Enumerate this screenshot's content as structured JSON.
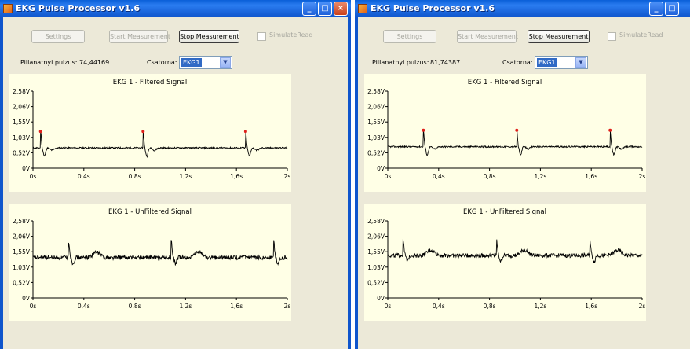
{
  "windows": [
    {
      "title": "EKG Pulse Processor v1.6",
      "buttons": {
        "settings": "Settings",
        "start": "Start Measurement",
        "stop": "Stop Measurement"
      },
      "simulate_label": "SimulateRead",
      "pulse_label": "Pillanatnyi pulzus:",
      "pulse_value": "74,44169",
      "channel_label": "Csatorna:",
      "channel_value": "EKG1",
      "charts": [
        {
          "type": "line",
          "title": "EKG 1 - Filtered Signal",
          "filtered": true,
          "baseline": 0.68,
          "rate_bpm": 74.44,
          "first_beat": 0.06,
          "xlabels": [
            "0s",
            "0,4s",
            "0,8s",
            "1,2s",
            "1,6s",
            "2s"
          ],
          "ylabels": [
            "0V",
            "0,52V",
            "1,03V",
            "1,55V",
            "2,06V",
            "2,58V"
          ],
          "xlim": [
            0,
            2
          ],
          "ylim": [
            0,
            2.58
          ],
          "peak_marker_color": "#e0201b"
        },
        {
          "type": "line",
          "title": "EKG 1 - UnFiltered Signal",
          "filtered": false,
          "baseline": 1.35,
          "rate_bpm": 74.44,
          "first_beat": 0.28,
          "xlabels": [
            "0s",
            "0,4s",
            "0,8s",
            "1,2s",
            "1,6s",
            "2s"
          ],
          "ylabels": [
            "0V",
            "0,52V",
            "1,03V",
            "1,55V",
            "2,06V",
            "2,58V"
          ],
          "xlim": [
            0,
            2
          ],
          "ylim": [
            0,
            2.58
          ]
        }
      ]
    },
    {
      "title": "EKG Pulse Processor v1.6",
      "buttons": {
        "settings": "Settings",
        "start": "Start Measurement",
        "stop": "Stop Measurement"
      },
      "simulate_label": "SimulateRead",
      "pulse_label": "Pillanatnyi pulzus:",
      "pulse_value": "81,74387",
      "channel_label": "Csatorna:",
      "channel_value": "EKG1",
      "charts": [
        {
          "type": "line",
          "title": "EKG 1 - Filtered Signal",
          "filtered": true,
          "baseline": 0.72,
          "rate_bpm": 81.74,
          "first_beat": 0.28,
          "xlabels": [
            "0s",
            "0,4s",
            "0,8s",
            "1,2s",
            "1,6s",
            "2s"
          ],
          "ylabels": [
            "0V",
            "0,52V",
            "1,03V",
            "1,55V",
            "2,06V",
            "2,58V"
          ],
          "xlim": [
            0,
            2
          ],
          "ylim": [
            0,
            2.58
          ],
          "peak_marker_color": "#e0201b"
        },
        {
          "type": "line",
          "title": "EKG 1 - UnFiltered Signal",
          "filtered": false,
          "baseline": 1.42,
          "rate_bpm": 81.74,
          "first_beat": 0.12,
          "xlabels": [
            "0s",
            "0,4s",
            "0,8s",
            "1,2s",
            "1,6s",
            "2s"
          ],
          "ylabels": [
            "0V",
            "0,52V",
            "1,03V",
            "1,55V",
            "2,06V",
            "2,58V"
          ],
          "xlim": [
            0,
            2
          ],
          "ylim": [
            0,
            2.58
          ]
        }
      ]
    }
  ]
}
